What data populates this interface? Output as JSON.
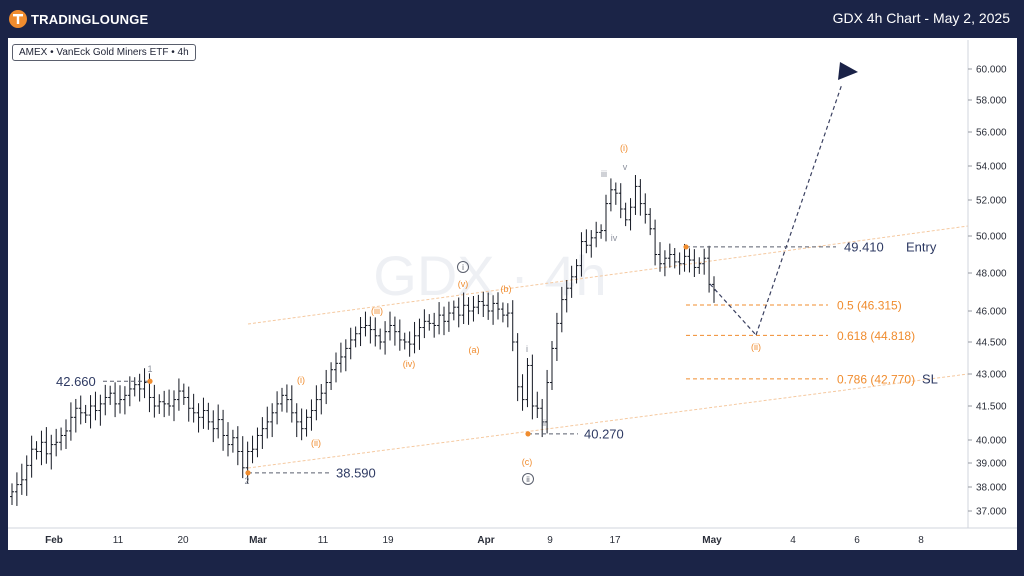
{
  "brand": {
    "name": "TRADINGLOUNGE"
  },
  "header": {
    "title": "GDX 4h Chart - May 2, 2025"
  },
  "legend": {
    "label": "AMEX • VanEck Gold Miners ETF • 4h"
  },
  "watermark": {
    "text": "GDX · 4h"
  },
  "colors": {
    "background": "#1b2447",
    "chart_bg": "#ffffff",
    "candle": "#131722",
    "fib_orange": "#f08c2e",
    "wave_gray": "#8a8f9c",
    "label_navy": "#2e3a63",
    "arrow_navy": "#1a2247"
  },
  "chart_data": {
    "type": "candlestick",
    "symbol": "GDX",
    "timeframe": "4h",
    "y_axis": {
      "ticks": [
        37.0,
        38.0,
        39.0,
        40.0,
        41.5,
        43.0,
        44.5,
        46.0,
        48.0,
        50.0,
        52.0,
        54.0,
        56.0,
        58.0,
        60.0
      ],
      "tick_labels": [
        "37.000",
        "38.000",
        "39.000",
        "40.000",
        "41.500",
        "43.000",
        "44.500",
        "46.000",
        "48.000",
        "50.000",
        "52.000",
        "54.000",
        "56.000",
        "58.000",
        "60.000"
      ]
    },
    "x_axis": {
      "ticks": [
        {
          "label": "Feb",
          "bold": true
        },
        {
          "label": "11",
          "bold": false
        },
        {
          "label": "20",
          "bold": false
        },
        {
          "label": "Mar",
          "bold": true
        },
        {
          "label": "11",
          "bold": false
        },
        {
          "label": "19",
          "bold": false
        },
        {
          "label": "Apr",
          "bold": true
        },
        {
          "label": "9",
          "bold": false
        },
        {
          "label": "17",
          "bold": false
        },
        {
          "label": "May",
          "bold": true
        },
        {
          "label": "4",
          "bold": false
        },
        {
          "label": "6",
          "bold": false
        },
        {
          "label": "8",
          "bold": false
        }
      ]
    },
    "price_levels": [
      {
        "label": "42.660",
        "value": 42.66
      },
      {
        "label": "38.590",
        "value": 38.59
      },
      {
        "label": "40.270",
        "value": 40.27
      },
      {
        "label": "49.410",
        "value": 49.41
      }
    ],
    "fib_levels": [
      {
        "label": "0.5 (46.315)",
        "ratio": 0.5,
        "value": 46.315
      },
      {
        "label": "0.618 (44.818)",
        "ratio": 0.618,
        "value": 44.818
      },
      {
        "label": "0.786 (42.770)",
        "ratio": 0.786,
        "value": 42.77
      }
    ],
    "trade_labels": {
      "entry": "Entry",
      "stop": "SL"
    },
    "wave_labels": [
      {
        "text": "1",
        "group": "gray"
      },
      {
        "text": "2",
        "group": "gray"
      },
      {
        "text": "(i)",
        "group": "orange"
      },
      {
        "text": "(ii)",
        "group": "orange"
      },
      {
        "text": "(iii)",
        "group": "orange"
      },
      {
        "text": "(iv)",
        "group": "orange"
      },
      {
        "text": "(v)",
        "group": "orange"
      },
      {
        "text": "ⓘ",
        "group": "circle"
      },
      {
        "text": "(a)",
        "group": "orange"
      },
      {
        "text": "(b)",
        "group": "orange"
      },
      {
        "text": "(c)",
        "group": "orange"
      },
      {
        "text": "ⓘⓘ",
        "group": "circle"
      },
      {
        "text": "i",
        "group": "gray"
      },
      {
        "text": "ii",
        "group": "gray"
      },
      {
        "text": "iii",
        "group": "gray"
      },
      {
        "text": "iv",
        "group": "gray"
      },
      {
        "text": "v",
        "group": "gray"
      },
      {
        "text": "(i)",
        "group": "orange"
      },
      {
        "text": "(ii)",
        "group": "orange"
      }
    ],
    "path_closes": [
      37.8,
      38.1,
      38.3,
      38.9,
      39.6,
      39.5,
      39.9,
      39.4,
      39.8,
      39.9,
      40.2,
      40.4,
      41.0,
      41.4,
      41.2,
      41.1,
      41.5,
      41.3,
      41.6,
      41.9,
      42.1,
      41.6,
      41.8,
      42.0,
      42.3,
      42.5,
      42.3,
      42.6,
      41.9,
      41.5,
      41.7,
      41.6,
      41.5,
      41.8,
      42.2,
      41.9,
      41.4,
      41.2,
      41.0,
      41.3,
      40.8,
      40.5,
      40.9,
      40.2,
      39.8,
      40.1,
      39.5,
      38.8,
      39.5,
      39.6,
      40.2,
      40.5,
      40.8,
      41.2,
      41.6,
      42.0,
      41.8,
      41.2,
      40.8,
      40.5,
      41.0,
      41.3,
      41.8,
      42.1,
      42.6,
      43.2,
      43.5,
      43.8,
      44.2,
      44.6,
      44.9,
      45.2,
      45.3,
      45.1,
      44.8,
      44.5,
      45.0,
      45.3,
      45.0,
      44.6,
      44.5,
      44.4,
      44.8,
      45.2,
      45.5,
      45.4,
      45.3,
      45.8,
      45.5,
      45.9,
      46.2,
      45.8,
      46.3,
      46.0,
      46.2,
      46.5,
      46.3,
      46.0,
      46.4,
      46.1,
      45.8,
      45.9,
      44.5,
      42.4,
      41.8,
      43.4,
      41.5,
      41.4,
      40.8,
      42.6,
      44.2,
      45.4,
      46.6,
      47.2,
      47.8,
      48.4,
      49.7,
      49.5,
      49.9,
      50.2,
      50.3,
      51.8,
      52.6,
      52.4,
      51.5,
      50.9,
      51.6,
      52.8,
      51.8,
      51.2,
      50.4,
      49.0,
      48.5,
      48.8,
      49.0,
      48.6,
      48.5,
      48.9,
      48.7,
      48.3,
      48.5,
      48.8,
      47.4,
      47.1
    ],
    "forecast": [
      {
        "from": "49.410",
        "to": "(ii)",
        "style": "dashed"
      },
      {
        "from": "(ii)",
        "to": "60.5",
        "style": "dashed-arrow"
      }
    ]
  }
}
